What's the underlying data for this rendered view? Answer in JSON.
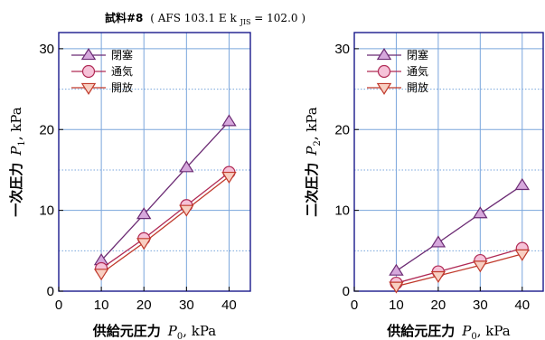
{
  "title": {
    "prefix": "試料#8",
    "text": "( AFS 103.1 E k",
    "sub": "JIS",
    "rest": "= 102.0 )"
  },
  "chart_data": [
    {
      "type": "line",
      "xlabel": {
        "jp": "供給元圧力",
        "sym": "P",
        "sub": "0",
        "unit": ", kPa"
      },
      "ylabel": {
        "jp": "一次圧力",
        "sym": "P",
        "sub": "1",
        "unit": ", kPa"
      },
      "xlim": [
        0,
        45
      ],
      "ylim": [
        0,
        32
      ],
      "xticks": [
        "0",
        "10",
        "20",
        "30",
        "40"
      ],
      "yticks": [
        "0",
        "10",
        "20",
        "30"
      ],
      "x": [
        10,
        20,
        30,
        40
      ],
      "series": [
        {
          "name": "閉塞",
          "values": [
            3.8,
            9.5,
            15.3,
            21.0
          ],
          "marker": "triangle-up",
          "fill": "#d6a8dc",
          "stroke": "#6b2a73"
        },
        {
          "name": "通気",
          "values": [
            2.8,
            6.5,
            10.6,
            14.7
          ],
          "marker": "circle",
          "fill": "#f6c2d8",
          "stroke": "#b02a55"
        },
        {
          "name": "開放",
          "values": [
            2.2,
            6.0,
            10.1,
            14.2
          ],
          "marker": "triangle-down",
          "fill": "#f8cfc2",
          "stroke": "#c0392b"
        }
      ]
    },
    {
      "type": "line",
      "xlabel": {
        "jp": "供給元圧力",
        "sym": "P",
        "sub": "0",
        "unit": ", kPa"
      },
      "ylabel": {
        "jp": "二次圧力",
        "sym": "P",
        "sub": "2",
        "unit": ", kPa"
      },
      "xlim": [
        0,
        45
      ],
      "ylim": [
        0,
        32
      ],
      "xticks": [
        "0",
        "10",
        "20",
        "30",
        "40"
      ],
      "yticks": [
        "0",
        "10",
        "20",
        "30"
      ],
      "x": [
        10,
        20,
        30,
        40
      ],
      "series": [
        {
          "name": "閉塞",
          "values": [
            2.5,
            6.0,
            9.6,
            13.1
          ],
          "marker": "triangle-up",
          "fill": "#d6a8dc",
          "stroke": "#6b2a73"
        },
        {
          "name": "通気",
          "values": [
            1.0,
            2.4,
            3.8,
            5.3
          ],
          "marker": "circle",
          "fill": "#f6c2d8",
          "stroke": "#b02a55"
        },
        {
          "name": "開放",
          "values": [
            0.6,
            1.9,
            3.2,
            4.6
          ],
          "marker": "triangle-down",
          "fill": "#f8cfc2",
          "stroke": "#c0392b"
        }
      ]
    }
  ]
}
